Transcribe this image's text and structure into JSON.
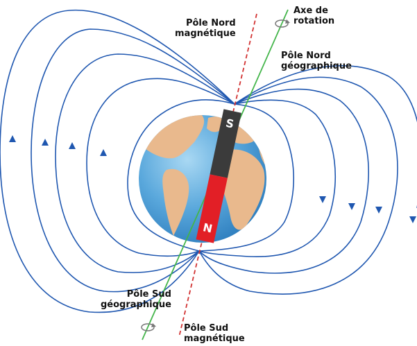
{
  "labels": {
    "magnetic_north": [
      "Pôle Nord",
      "magnétique"
    ],
    "rotation_axis": [
      "Axe de",
      "rotation"
    ],
    "geographic_north": [
      "Pôle Nord",
      "géographique"
    ],
    "geographic_south": [
      "Pôle Sud",
      "géographique"
    ],
    "magnetic_south": [
      "Pôle Sud",
      "magnétique"
    ]
  },
  "magnet": {
    "top_pole": "S",
    "bottom_pole": "N"
  },
  "colors": {
    "field_line": "#1f57b0",
    "rotation_axis": "#43b54a",
    "magnetic_axis": "#d23232",
    "ocean": "#4d9fd6",
    "land": "#e9b98d",
    "magnet_south": "#3b3b3b",
    "magnet_north": "#e21f26"
  },
  "icons": {
    "rotation_top": "rotation-arrow-icon",
    "rotation_bottom": "rotation-arrow-icon"
  }
}
